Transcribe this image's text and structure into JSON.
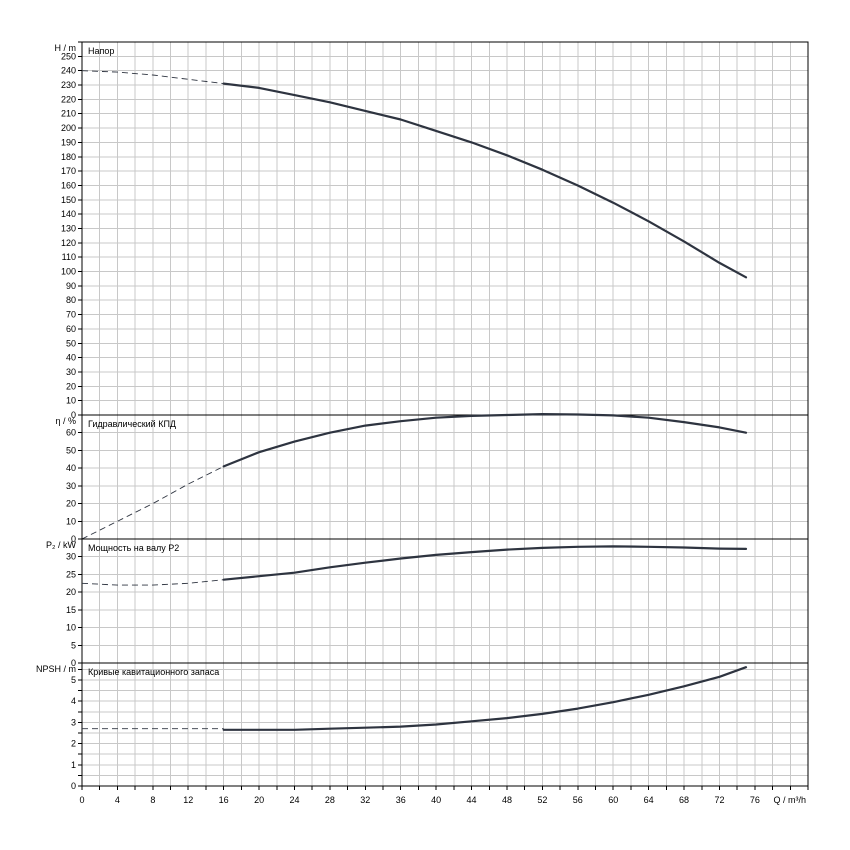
{
  "chart_data": [
    {
      "type": "line",
      "title": "Напор",
      "ylabel": "H / m",
      "ylim": [
        0,
        260
      ],
      "ytick_step": 10,
      "ytick_labels": [
        "0",
        "10",
        "20",
        "30",
        "40",
        "50",
        "60",
        "70",
        "80",
        "90",
        "100",
        "110",
        "120",
        "130",
        "140",
        "150",
        "160",
        "170",
        "180",
        "190",
        "200",
        "210",
        "220",
        "230",
        "240",
        "250"
      ],
      "dashed": [
        [
          0,
          240
        ],
        [
          4,
          239
        ],
        [
          8,
          237
        ],
        [
          12,
          234
        ],
        [
          16,
          231
        ]
      ],
      "solid": [
        [
          16,
          231
        ],
        [
          20,
          228
        ],
        [
          24,
          223
        ],
        [
          28,
          218
        ],
        [
          32,
          212
        ],
        [
          36,
          206
        ],
        [
          40,
          198
        ],
        [
          44,
          190
        ],
        [
          48,
          181
        ],
        [
          52,
          171
        ],
        [
          56,
          160
        ],
        [
          60,
          148
        ],
        [
          64,
          135
        ],
        [
          68,
          121
        ],
        [
          72,
          106
        ],
        [
          75,
          96
        ]
      ]
    },
    {
      "type": "line",
      "title": "Гидравлический КПД",
      "ylabel": "η / %",
      "ylim": [
        0,
        70
      ],
      "ytick_step": 10,
      "ytick_labels": [
        "0",
        "10",
        "20",
        "30",
        "40",
        "50",
        "60"
      ],
      "dashed": [
        [
          0,
          0
        ],
        [
          4,
          10
        ],
        [
          8,
          20
        ],
        [
          12,
          31
        ],
        [
          16,
          41
        ]
      ],
      "solid": [
        [
          16,
          41
        ],
        [
          20,
          49
        ],
        [
          24,
          55
        ],
        [
          28,
          60
        ],
        [
          32,
          64
        ],
        [
          36,
          66.5
        ],
        [
          40,
          68.5
        ],
        [
          44,
          69.5
        ],
        [
          48,
          70
        ],
        [
          52,
          70.5
        ],
        [
          56,
          70.3
        ],
        [
          60,
          69.8
        ],
        [
          64,
          68.5
        ],
        [
          68,
          66
        ],
        [
          72,
          63
        ],
        [
          75,
          60
        ]
      ]
    },
    {
      "type": "line",
      "title": "Мощность на валу P2",
      "ylabel": "P₂ / kW",
      "ylim": [
        0,
        35
      ],
      "ytick_step": 5,
      "ytick_labels": [
        "0",
        "5",
        "10",
        "15",
        "20",
        "25",
        "30"
      ],
      "dashed": [
        [
          0,
          22.5
        ],
        [
          4,
          22
        ],
        [
          8,
          22
        ],
        [
          12,
          22.5
        ],
        [
          16,
          23.5
        ]
      ],
      "solid": [
        [
          16,
          23.5
        ],
        [
          20,
          24.5
        ],
        [
          24,
          25.5
        ],
        [
          28,
          27
        ],
        [
          32,
          28.3
        ],
        [
          36,
          29.5
        ],
        [
          40,
          30.5
        ],
        [
          44,
          31.3
        ],
        [
          48,
          32
        ],
        [
          52,
          32.5
        ],
        [
          56,
          32.8
        ],
        [
          60,
          32.9
        ],
        [
          64,
          32.8
        ],
        [
          68,
          32.6
        ],
        [
          72,
          32.3
        ],
        [
          75,
          32.2
        ]
      ]
    },
    {
      "type": "line",
      "title": "Кривые кавитационного запаса",
      "ylabel": "NPSH / m",
      "ylim": [
        0,
        5.8
      ],
      "ytick_step": 0.5,
      "ytick_labels": [
        "0",
        "1",
        "2",
        "3",
        "4",
        "5"
      ],
      "dashed": [
        [
          0,
          2.7
        ],
        [
          16,
          2.7
        ]
      ],
      "solid": [
        [
          16,
          2.65
        ],
        [
          20,
          2.65
        ],
        [
          24,
          2.65
        ],
        [
          28,
          2.7
        ],
        [
          32,
          2.75
        ],
        [
          36,
          2.8
        ],
        [
          40,
          2.9
        ],
        [
          44,
          3.05
        ],
        [
          48,
          3.2
        ],
        [
          52,
          3.4
        ],
        [
          56,
          3.65
        ],
        [
          60,
          3.95
        ],
        [
          64,
          4.3
        ],
        [
          68,
          4.7
        ],
        [
          72,
          5.15
        ],
        [
          75,
          5.6
        ]
      ]
    }
  ],
  "x_axis": {
    "label": "Q / m³/h",
    "xlim": [
      0,
      82
    ],
    "minor_step": 2,
    "tick_labels": [
      "0",
      "4",
      "8",
      "12",
      "16",
      "20",
      "24",
      "28",
      "32",
      "36",
      "40",
      "44",
      "48",
      "52",
      "56",
      "60",
      "64",
      "68",
      "72",
      "76"
    ]
  },
  "colors": {
    "curve": "#2e3440",
    "grid": "#c8c8c8",
    "frame": "#000000"
  }
}
